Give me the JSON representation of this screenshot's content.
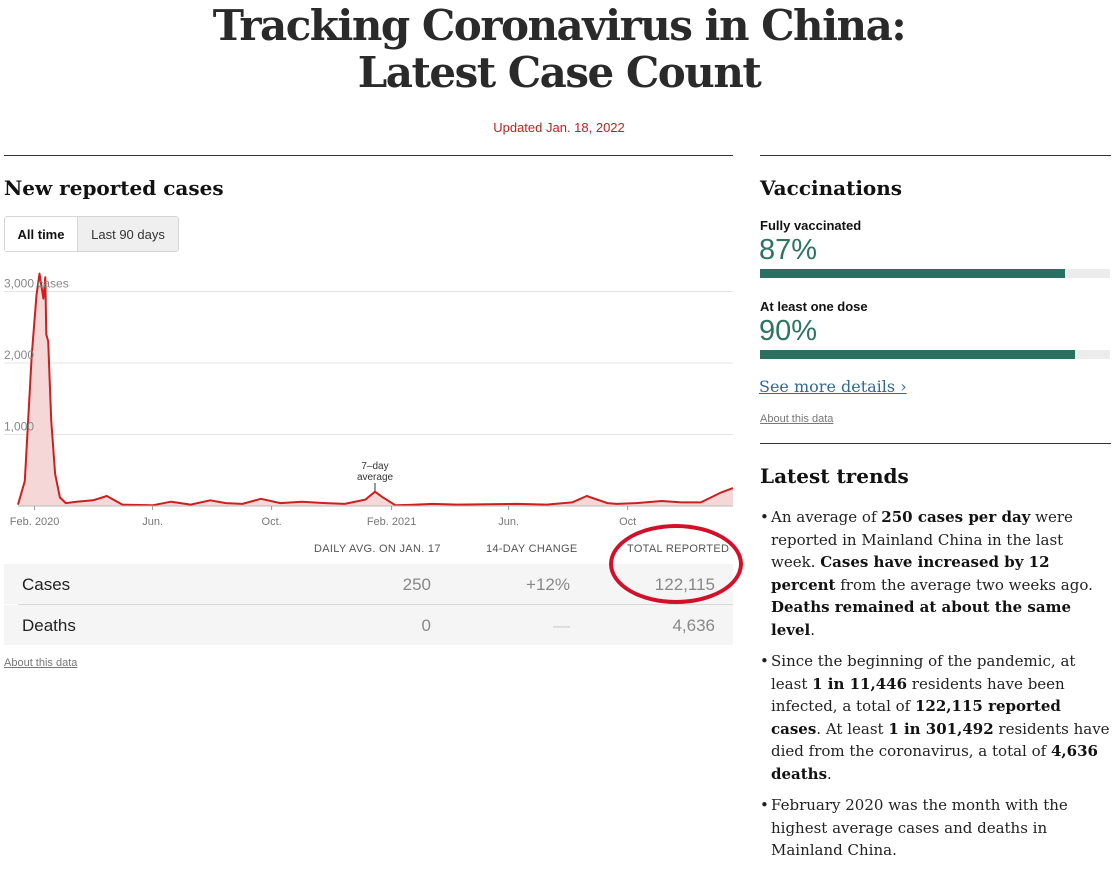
{
  "header": {
    "title_line1": "Tracking Coronavirus in China:",
    "title_line2": "Latest Case Count",
    "updated": "Updated Jan. 18, 2022"
  },
  "cases_section": {
    "title": "New reported cases",
    "toggle": {
      "all_time": "All time",
      "last_90": "Last 90 days",
      "selected": "All time"
    },
    "annotation": {
      "line1": "7–day",
      "line2": "average"
    }
  },
  "chart_data": {
    "type": "area",
    "title": "New reported cases",
    "y_unit_label": "cases",
    "y_ticks": [
      "1,000",
      "2,000",
      "3,000"
    ],
    "ylim": [
      0,
      3300
    ],
    "x_ticks": [
      "Feb. 2020",
      "Jun.",
      "Oct.",
      "Feb. 2021",
      "Jun.",
      "Oct"
    ],
    "grid": true,
    "series": [
      {
        "x": [
          "2020-01-15",
          "2020-01-22",
          "2020-01-29",
          "2020-02-03",
          "2020-02-06",
          "2020-02-10",
          "2020-02-12",
          "2020-02-13",
          "2020-02-15",
          "2020-02-18",
          "2020-02-22",
          "2020-02-27",
          "2020-03-04",
          "2020-03-15",
          "2020-04-01",
          "2020-04-15",
          "2020-05-01",
          "2020-06-01",
          "2020-06-20",
          "2020-07-10",
          "2020-07-30",
          "2020-08-15",
          "2020-09-01",
          "2020-09-20",
          "2020-10-10",
          "2020-11-01",
          "2020-11-25",
          "2020-12-15",
          "2021-01-05",
          "2021-01-15",
          "2021-01-22",
          "2021-02-05",
          "2021-02-20",
          "2021-03-15",
          "2021-04-10",
          "2021-05-10",
          "2021-06-10",
          "2021-07-10",
          "2021-08-05",
          "2021-08-20",
          "2021-09-10",
          "2021-09-20",
          "2021-10-10",
          "2021-11-05",
          "2021-11-25",
          "2021-12-15",
          "2022-01-05",
          "2022-01-17"
        ],
        "values": [
          20,
          350,
          2100,
          2950,
          3250,
          2900,
          3200,
          2400,
          2300,
          1200,
          450,
          120,
          40,
          60,
          80,
          140,
          20,
          10,
          60,
          20,
          80,
          40,
          30,
          100,
          40,
          60,
          40,
          30,
          90,
          200,
          130,
          10,
          15,
          30,
          20,
          25,
          30,
          20,
          50,
          140,
          40,
          30,
          40,
          70,
          50,
          50,
          190,
          250
        ]
      }
    ]
  },
  "table": {
    "headers": {
      "daily": "DAILY AVG. ON JAN. 17",
      "change": "14-DAY CHANGE",
      "total": "TOTAL REPORTED"
    },
    "rows": [
      {
        "label": "Cases",
        "daily": "250",
        "change": "+12%",
        "total": "122,115"
      },
      {
        "label": "Deaths",
        "daily": "0",
        "change": "—",
        "total": "4,636"
      }
    ],
    "about": "About this data"
  },
  "vaccinations": {
    "title": "Vaccinations",
    "fully": {
      "label": "Fully vaccinated",
      "pct": "87%",
      "value": 0.87
    },
    "one_dose": {
      "label": "At least one dose",
      "pct": "90%",
      "value": 0.9
    },
    "see_more": "See more details ›",
    "about": "About this data"
  },
  "trends": {
    "title": "Latest trends",
    "p1": [
      "An average of ",
      "250 cases per day",
      " were reported in Mainland China in the last week. ",
      "Cases have increased by 12 percent",
      " from the average two weeks ago. ",
      "Deaths remained at about the same level",
      "."
    ],
    "p2": [
      "Since the beginning of the pandemic, at least ",
      "1 in 11,446",
      " residents have been infected, a total of ",
      "122,115 reported cases",
      ". At least ",
      "1 in 301,492",
      " residents have died from the coronavirus, a total of ",
      "4,636 deaths",
      "."
    ],
    "p3": [
      "February 2020 was the month with the highest average cases and deaths in Mainland China."
    ]
  },
  "colors": {
    "accent_red": "#bf1f1f",
    "circle_red": "#d3102a",
    "vaccine_green": "#2a6f5f",
    "link_blue": "#326891"
  }
}
